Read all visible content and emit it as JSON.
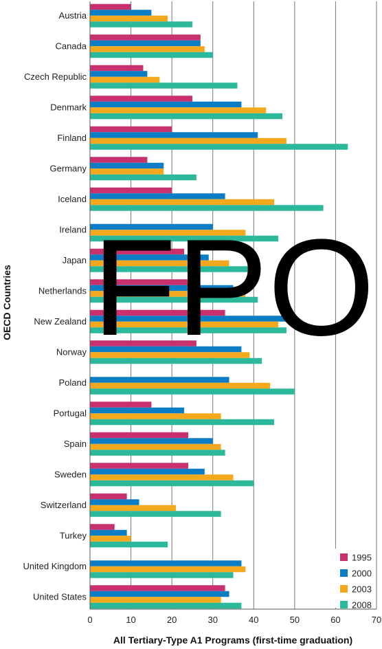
{
  "chart_data": {
    "type": "bar",
    "orientation": "horizontal",
    "categories": [
      "Austria",
      "Canada",
      "Czech Republic",
      "Denmark",
      "Finland",
      "Germany",
      "Iceland",
      "Ireland",
      "Japan",
      "Netherlands",
      "New Zealand",
      "Norway",
      "Poland",
      "Portugal",
      "Spain",
      "Sweden",
      "Switzerland",
      "Turkey",
      "United Kingdom",
      "United States"
    ],
    "series": [
      {
        "name": "1995",
        "color": "#c8306e",
        "values": [
          10,
          27,
          13,
          25,
          20,
          14,
          20,
          null,
          23,
          24,
          33,
          26,
          null,
          15,
          24,
          24,
          9,
          6,
          null,
          33
        ]
      },
      {
        "name": "2000",
        "color": "#0a7dc4",
        "values": [
          15,
          27,
          14,
          37,
          41,
          18,
          33,
          30,
          29,
          35,
          50,
          37,
          34,
          23,
          30,
          28,
          12,
          9,
          37,
          34
        ]
      },
      {
        "name": "2003",
        "color": "#f4a81d",
        "values": [
          19,
          28,
          17,
          43,
          48,
          18,
          45,
          38,
          34,
          38,
          46,
          39,
          44,
          32,
          32,
          35,
          21,
          10,
          38,
          32
        ]
      },
      {
        "name": "2008",
        "color": "#2cb89a",
        "values": [
          25,
          30,
          36,
          47,
          63,
          26,
          57,
          46,
          39,
          41,
          48,
          42,
          50,
          45,
          33,
          40,
          32,
          19,
          35,
          37
        ]
      }
    ],
    "xlim": [
      0,
      70
    ],
    "xticks": [
      "0",
      "10",
      "20",
      "30",
      "40",
      "50",
      "60",
      "70"
    ],
    "xlabel": "All Tertiary-Type A1 Programs (first-time graduation)",
    "ylabel": "OECD Countries",
    "grid": "vertical",
    "legend_position": "bottom-right",
    "watermark": "FPO"
  }
}
